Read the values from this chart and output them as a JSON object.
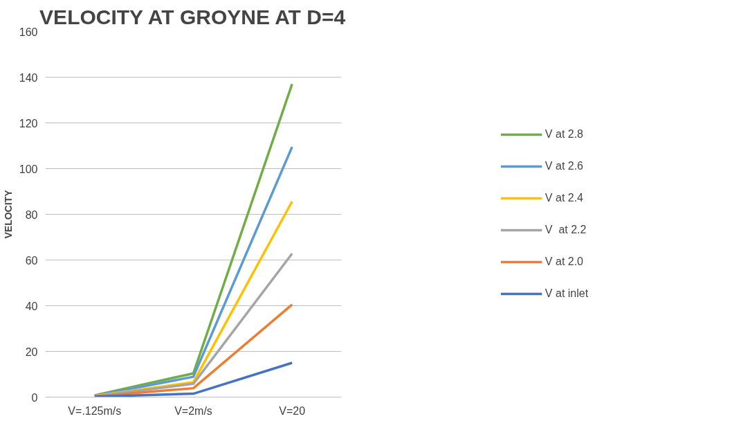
{
  "chart_data": {
    "type": "line",
    "title": "VELOCITY AT GROYNE AT D=4",
    "ylabel": "VELOCITY",
    "categories": [
      "V=.125m/s",
      "V=2m/s",
      "V=20"
    ],
    "series": [
      {
        "name": "V at 2.8",
        "color": "#70ad47",
        "values": [
          0.8,
          10.4,
          137
        ]
      },
      {
        "name": "V at 2.6",
        "color": "#5b9bd5",
        "values": [
          0.6,
          8.9,
          109.5
        ]
      },
      {
        "name": "V at 2.4",
        "color": "#ffc000",
        "values": [
          0.5,
          6.5,
          85.6
        ]
      },
      {
        "name": "V  at 2.2",
        "color": "#a5a5a5",
        "values": [
          0.4,
          5.8,
          62.8
        ]
      },
      {
        "name": "V at 2.0",
        "color": "#ed7d31",
        "values": [
          0.3,
          3.9,
          40.5
        ]
      },
      {
        "name": "V at inlet",
        "color": "#4472c4",
        "values": [
          0.2,
          1.5,
          15
        ]
      }
    ],
    "ylim": [
      0,
      160
    ],
    "yticks": [
      0,
      20,
      40,
      60,
      80,
      100,
      120,
      140,
      160
    ],
    "grid": "y",
    "legend": "right",
    "marker": "none",
    "line_style": "solid"
  }
}
